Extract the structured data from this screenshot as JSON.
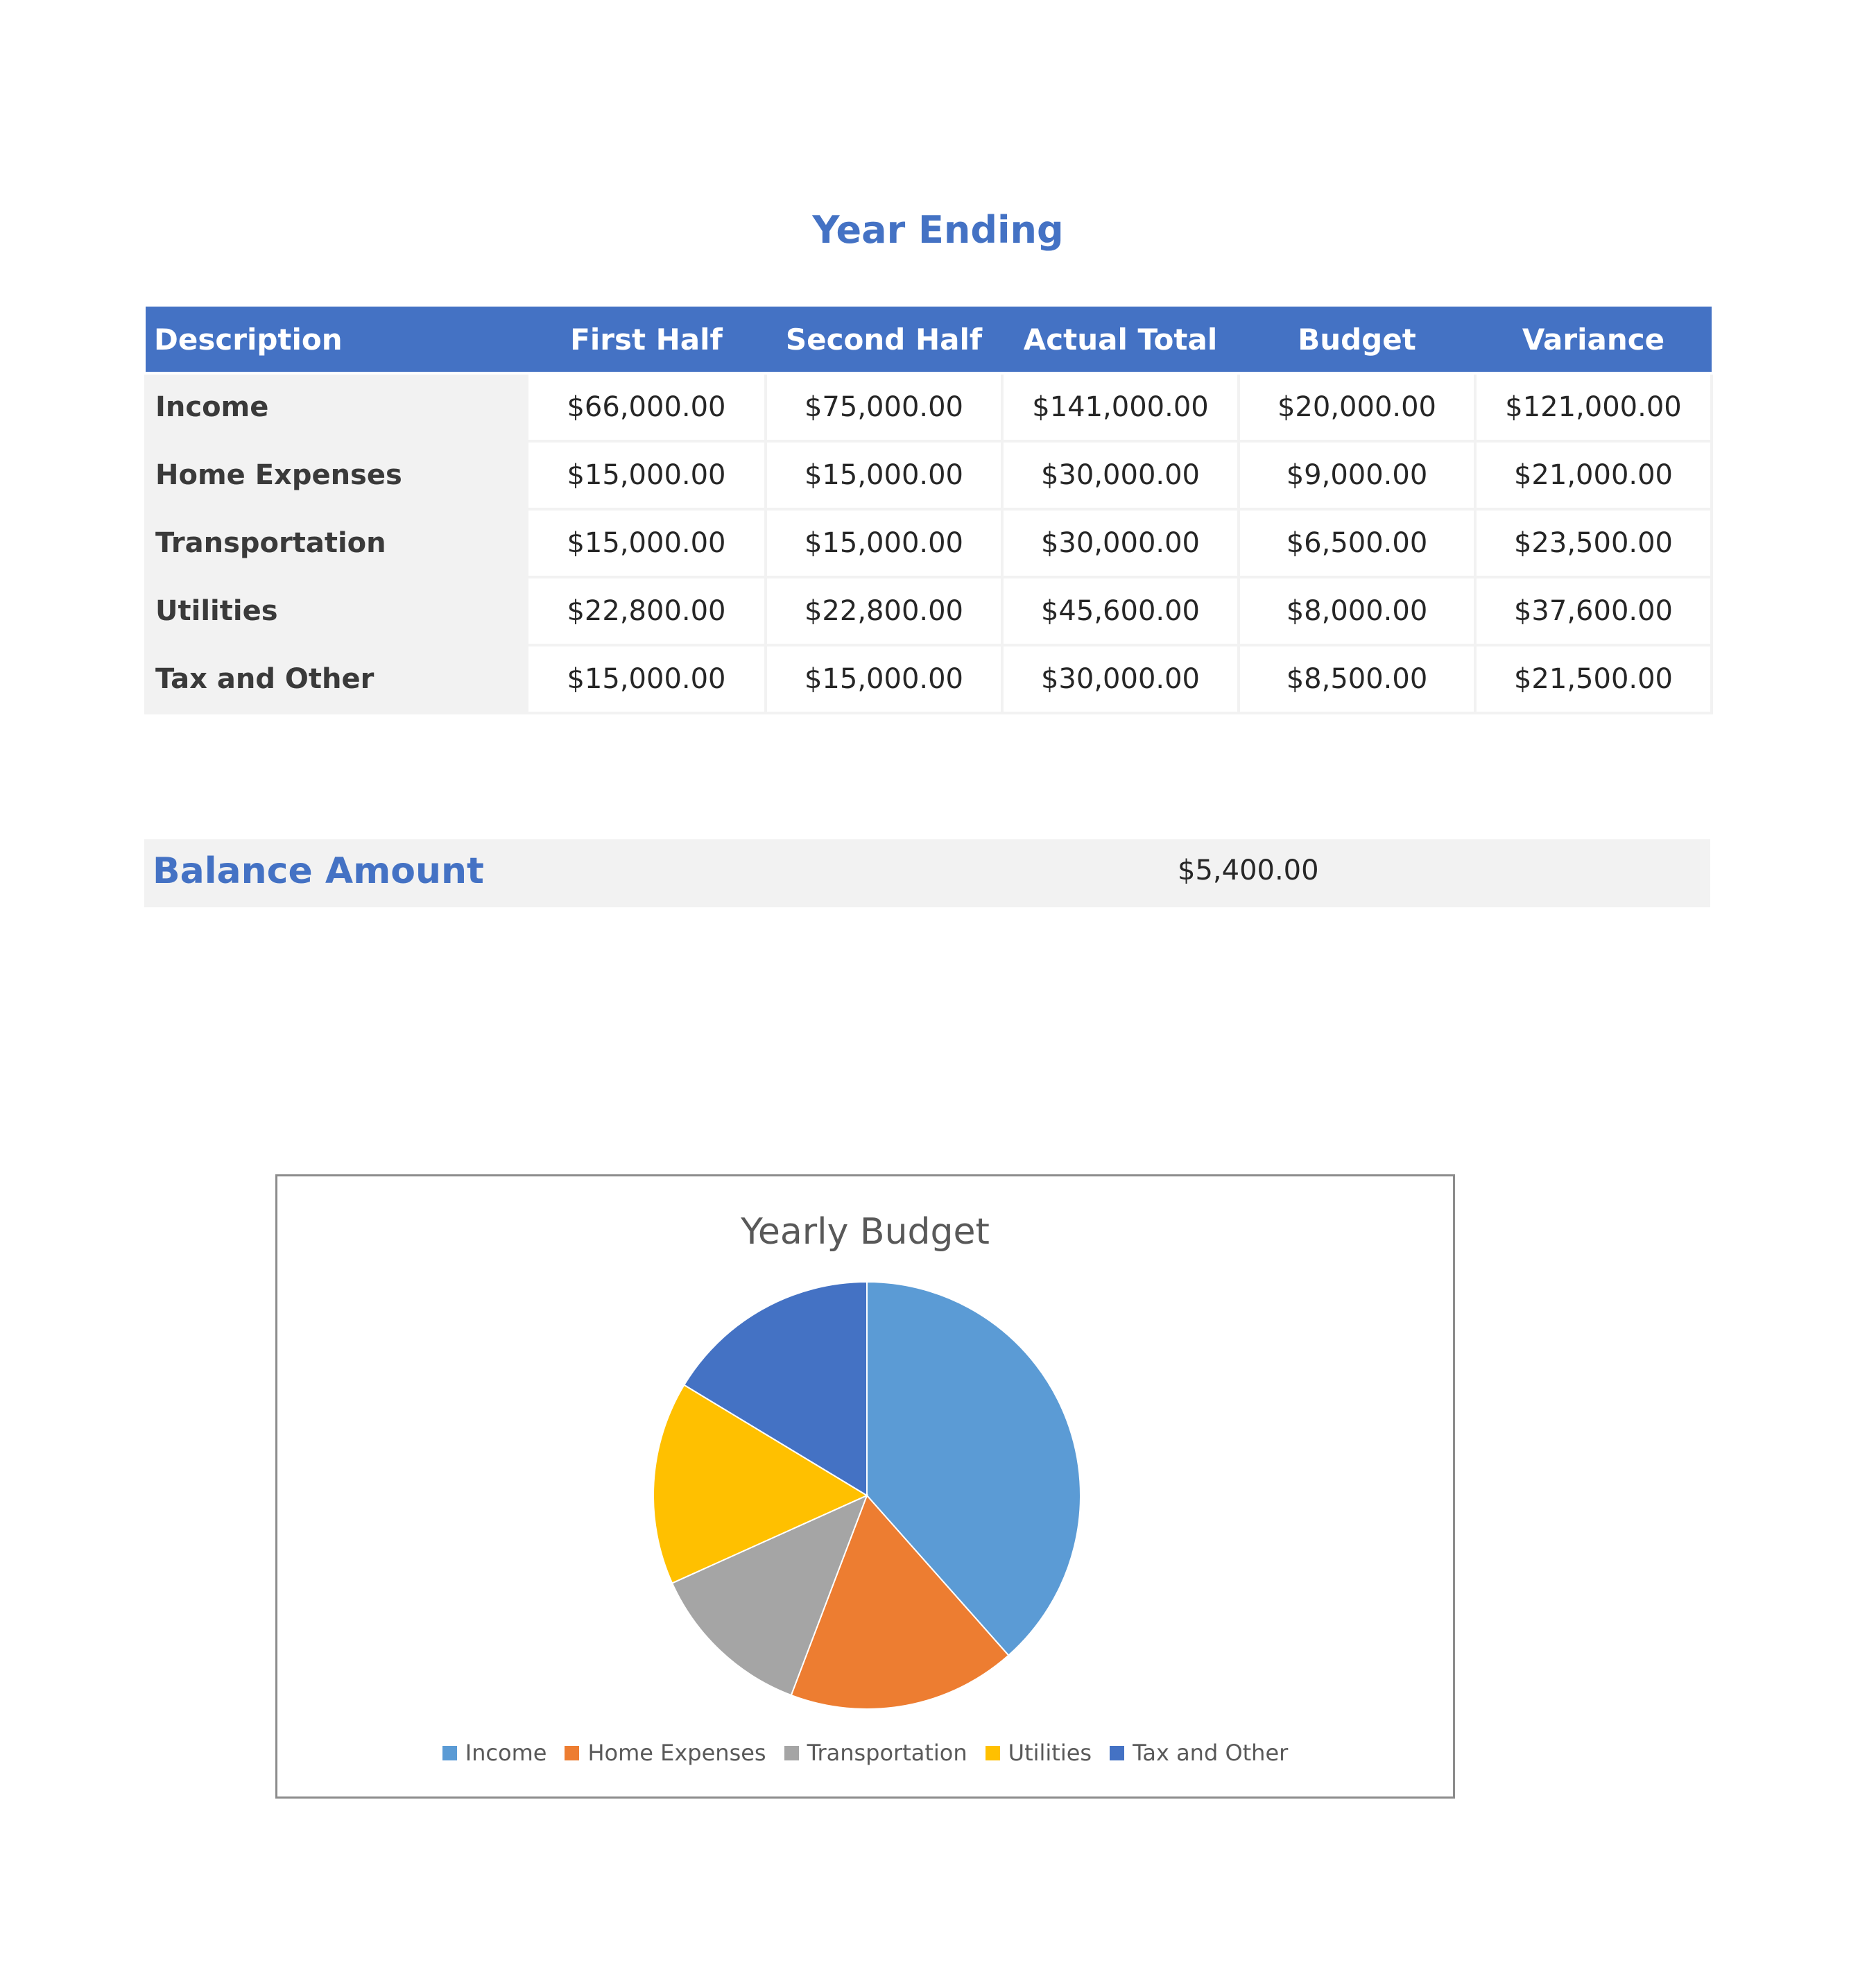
{
  "title": "Year Ending",
  "table": {
    "headers": [
      "Description",
      "First Half",
      "Second Half",
      "Actual Total",
      "Budget",
      "Variance"
    ],
    "rows": [
      {
        "label": "Income",
        "values": [
          "$66,000.00",
          "$75,000.00",
          "$141,000.00",
          "$20,000.00",
          "$121,000.00"
        ]
      },
      {
        "label": "Home Expenses",
        "values": [
          "$15,000.00",
          "$15,000.00",
          "$30,000.00",
          "$9,000.00",
          "$21,000.00"
        ]
      },
      {
        "label": "Transportation",
        "values": [
          "$15,000.00",
          "$15,000.00",
          "$30,000.00",
          "$6,500.00",
          "$23,500.00"
        ]
      },
      {
        "label": "Utilities",
        "values": [
          "$22,800.00",
          "$22,800.00",
          "$45,600.00",
          "$8,000.00",
          "$37,600.00"
        ]
      },
      {
        "label": "Tax and Other",
        "values": [
          "$15,000.00",
          "$15,000.00",
          "$30,000.00",
          "$8,500.00",
          "$21,500.00"
        ]
      }
    ]
  },
  "balance": {
    "label": "Balance Amount",
    "value": "$5,400.00"
  },
  "chart_data": {
    "type": "pie",
    "title": "Yearly Budget",
    "categories": [
      "Income",
      "Home Expenses",
      "Transportation",
      "Utilities",
      "Tax and Other"
    ],
    "values": [
      20000,
      9000,
      6500,
      8000,
      8500
    ],
    "colors": [
      "#5b9bd5",
      "#ed7d31",
      "#a5a5a5",
      "#ffc000",
      "#4472c4"
    ],
    "legend_position": "bottom"
  }
}
